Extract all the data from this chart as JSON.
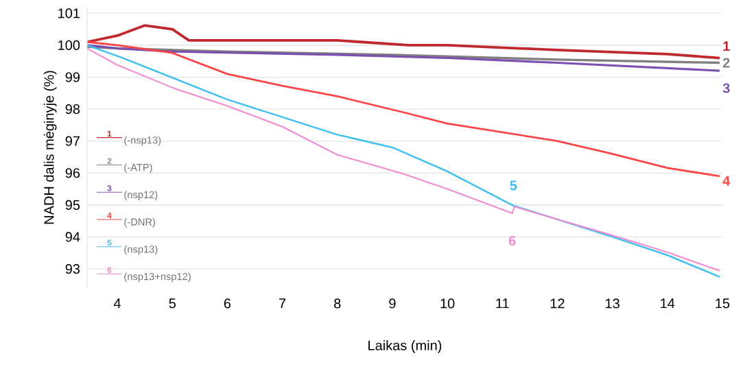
{
  "chart_data": {
    "type": "line",
    "xlabel": "Laikas (min)",
    "ylabel": "NADH dalis mėginyje (%)",
    "xlim": [
      3.45,
      15
    ],
    "xticks": [
      4,
      5,
      6,
      7,
      8,
      9,
      10,
      11,
      12,
      13,
      14,
      15
    ],
    "ylim": [
      92.4,
      101.2
    ],
    "yticks": [
      93,
      94,
      95,
      96,
      97,
      98,
      99,
      100,
      101
    ],
    "grid": "y",
    "legend": "bottom left",
    "line_style": "solid",
    "marker": "none",
    "series": [
      {
        "name": "(-nsp13)",
        "color": "#c0282d",
        "x": [
          3.45,
          4.0,
          4.5,
          5.0,
          5.3,
          6,
          8,
          9.3,
          10,
          12,
          14,
          14.95
        ],
        "values": [
          100.1,
          100.3,
          100.62,
          100.5,
          100.15,
          100.15,
          100.15,
          100.0,
          100.0,
          99.85,
          99.72,
          99.6
        ]
      },
      {
        "name": "(-ATP)",
        "color": "#808080",
        "x": [
          3.45,
          4,
          6,
          9,
          12,
          14.95
        ],
        "values": [
          99.95,
          99.9,
          99.8,
          99.7,
          99.55,
          99.45
        ]
      },
      {
        "name": "(nsp12)",
        "color": "#7b4fb0",
        "x": [
          3.45,
          4,
          5,
          8,
          10,
          12,
          14.95
        ],
        "values": [
          100.0,
          99.9,
          99.8,
          99.7,
          99.6,
          99.45,
          99.2
        ]
      },
      {
        "name": "(-DNR)",
        "color": "#ff4545",
        "x": [
          3.45,
          4,
          5,
          6,
          7,
          8,
          9.2,
          10,
          12,
          13,
          14,
          14.95
        ],
        "values": [
          100.1,
          100.0,
          99.76,
          99.1,
          98.73,
          98.4,
          97.9,
          97.55,
          97.0,
          96.6,
          96.16,
          95.9
        ]
      },
      {
        "name": "(nsp13)",
        "color": "#3fbfef",
        "x": [
          3.45,
          4.1,
          6,
          8,
          9,
          10,
          11.2,
          12,
          13,
          14,
          14.95
        ],
        "values": [
          100.0,
          99.6,
          98.3,
          97.2,
          96.8,
          96.05,
          94.98,
          94.55,
          94.0,
          93.43,
          92.75
        ]
      },
      {
        "name": "(nsp13+nsp12)",
        "color": "#f08ccf",
        "x": [
          3.45,
          4,
          5,
          6,
          7,
          8,
          9.17,
          10,
          11.18,
          11.22,
          12,
          13,
          14,
          14.95
        ],
        "values": [
          99.9,
          99.38,
          98.67,
          98.1,
          97.45,
          96.57,
          95.99,
          95.5,
          94.74,
          94.95,
          94.55,
          94.05,
          93.52,
          92.94
        ]
      }
    ],
    "annotations": [
      {
        "text": "1",
        "x": 14.95,
        "y": 99.6
      },
      {
        "text": "2",
        "x": 14.95,
        "y": 99.45
      },
      {
        "text": "3",
        "x": 14.95,
        "y": 99.2
      },
      {
        "text": "4",
        "x": 14.95,
        "y": 95.9
      },
      {
        "text": "5",
        "x": 11.2,
        "y": 94.98
      },
      {
        "text": "6",
        "x": 11.18,
        "y": 94.74
      }
    ]
  }
}
